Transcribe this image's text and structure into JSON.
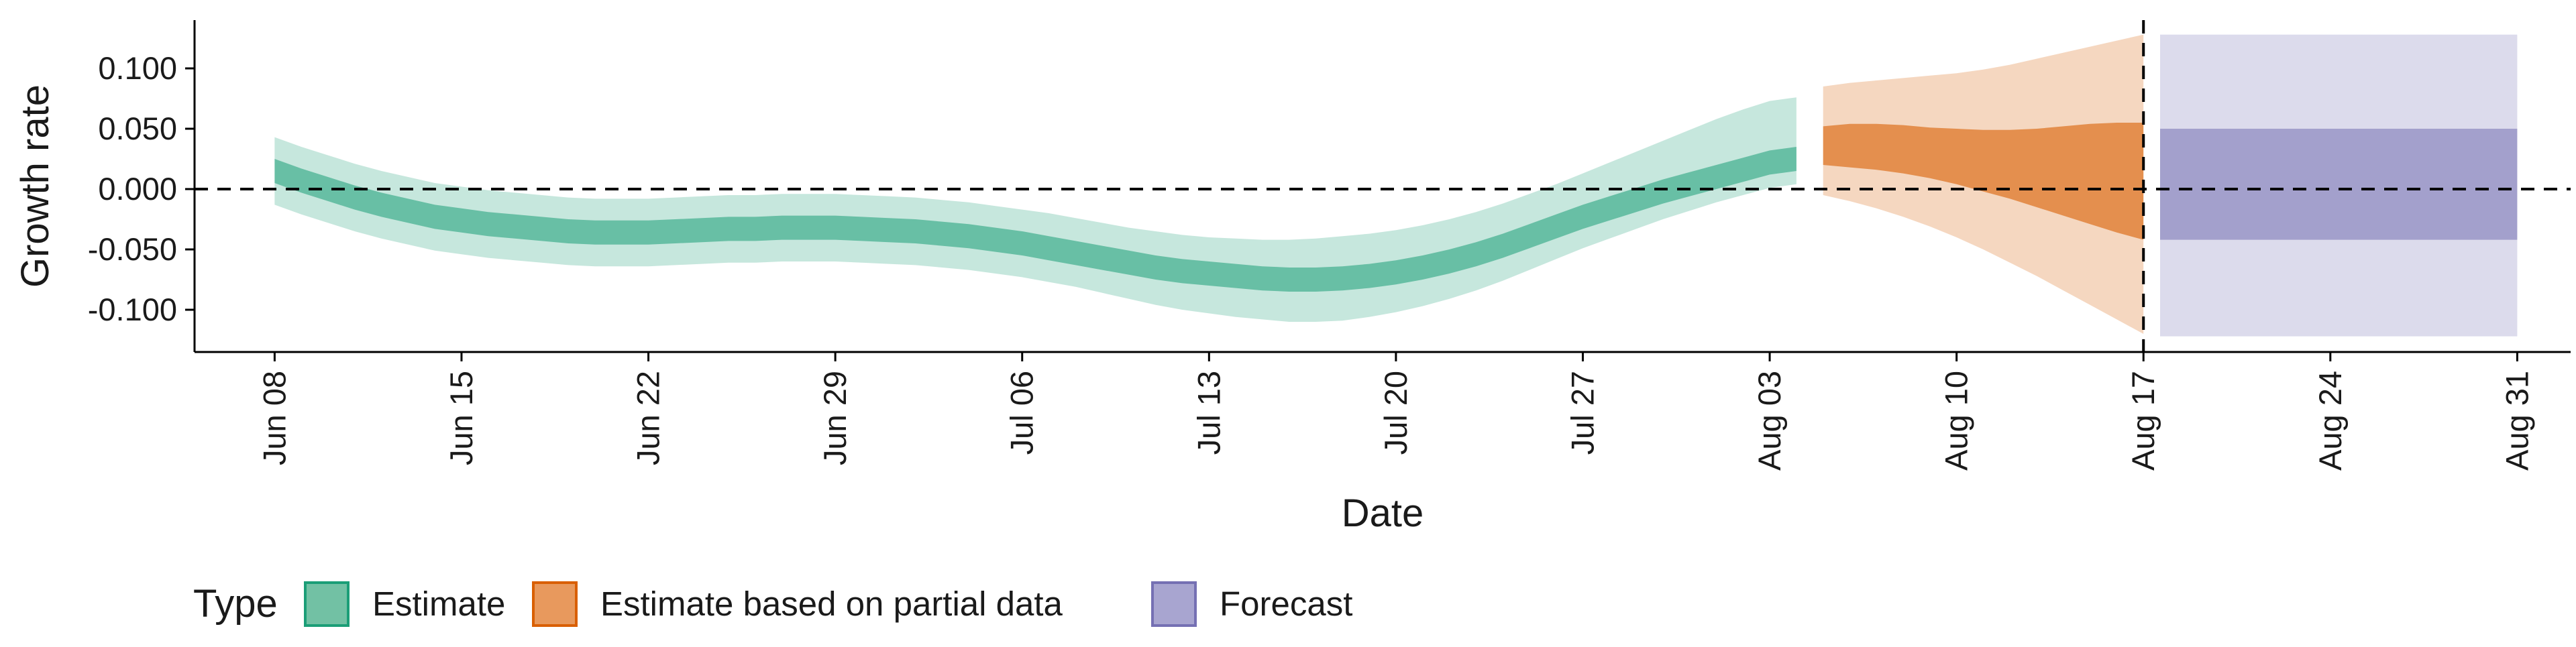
{
  "chart_data": {
    "type": "area",
    "xlabel": "Date",
    "ylabel": "Growth rate",
    "x_range": [
      "2020-06-05",
      "2020-09-02"
    ],
    "ylim": [
      -0.135,
      0.14
    ],
    "y_ticks": [
      -0.1,
      -0.05,
      0.0,
      0.05,
      0.1
    ],
    "y_tick_labels": [
      "-0.100",
      "-0.050",
      "0.000",
      "0.050",
      "0.100"
    ],
    "x_ticks": [
      "2020-06-08",
      "2020-06-15",
      "2020-06-22",
      "2020-06-29",
      "2020-07-06",
      "2020-07-13",
      "2020-07-20",
      "2020-07-27",
      "2020-08-03",
      "2020-08-10",
      "2020-08-17",
      "2020-08-24",
      "2020-08-31"
    ],
    "x_tick_labels": [
      "Jun 08",
      "Jun 15",
      "Jun 22",
      "Jun 29",
      "Jul 06",
      "Jul 13",
      "Jul 20",
      "Jul 27",
      "Aug 03",
      "Aug 10",
      "Aug 17",
      "Aug 24",
      "Aug 31"
    ],
    "reference_lines": {
      "horizontal_y": 0.0,
      "vertical_date": "2020-08-17"
    },
    "grid": false,
    "legend": {
      "title": "Type",
      "position": "bottom-left",
      "entries": [
        {
          "label": "Estimate",
          "fill": "#72c1a4",
          "stroke": "#1b9e77"
        },
        {
          "label": "Estimate based on partial data",
          "fill": "#e8995d",
          "stroke": "#d95f02"
        },
        {
          "label": "Forecast",
          "fill": "#a8a5d0",
          "stroke": "#7570b3"
        }
      ]
    },
    "series": [
      {
        "type": "Estimate",
        "color": "#1b9e77",
        "inner_opacity": 0.55,
        "outer_opacity": 0.25,
        "dates": [
          "2020-06-08",
          "2020-06-09",
          "2020-06-10",
          "2020-06-11",
          "2020-06-12",
          "2020-06-13",
          "2020-06-14",
          "2020-06-15",
          "2020-06-16",
          "2020-06-17",
          "2020-06-18",
          "2020-06-19",
          "2020-06-20",
          "2020-06-21",
          "2020-06-22",
          "2020-06-23",
          "2020-06-24",
          "2020-06-25",
          "2020-06-26",
          "2020-06-27",
          "2020-06-28",
          "2020-06-29",
          "2020-06-30",
          "2020-07-01",
          "2020-07-02",
          "2020-07-03",
          "2020-07-04",
          "2020-07-05",
          "2020-07-06",
          "2020-07-07",
          "2020-07-08",
          "2020-07-09",
          "2020-07-10",
          "2020-07-11",
          "2020-07-12",
          "2020-07-13",
          "2020-07-14",
          "2020-07-15",
          "2020-07-16",
          "2020-07-17",
          "2020-07-18",
          "2020-07-19",
          "2020-07-20",
          "2020-07-21",
          "2020-07-22",
          "2020-07-23",
          "2020-07-24",
          "2020-07-25",
          "2020-07-26",
          "2020-07-27",
          "2020-07-28",
          "2020-07-29",
          "2020-07-30",
          "2020-07-31",
          "2020-08-01",
          "2020-08-02",
          "2020-08-03",
          "2020-08-04"
        ],
        "inner_lower": [
          0.005,
          -0.003,
          -0.01,
          -0.017,
          -0.023,
          -0.028,
          -0.033,
          -0.036,
          -0.039,
          -0.041,
          -0.043,
          -0.045,
          -0.046,
          -0.046,
          -0.046,
          -0.045,
          -0.044,
          -0.043,
          -0.043,
          -0.042,
          -0.042,
          -0.042,
          -0.043,
          -0.044,
          -0.045,
          -0.047,
          -0.049,
          -0.052,
          -0.055,
          -0.059,
          -0.063,
          -0.067,
          -0.071,
          -0.075,
          -0.078,
          -0.08,
          -0.082,
          -0.084,
          -0.085,
          -0.085,
          -0.084,
          -0.082,
          -0.079,
          -0.075,
          -0.07,
          -0.064,
          -0.057,
          -0.049,
          -0.041,
          -0.033,
          -0.026,
          -0.019,
          -0.012,
          -0.006,
          0.0,
          0.006,
          0.012,
          0.015
        ],
        "inner_upper": [
          0.025,
          0.017,
          0.01,
          0.003,
          -0.003,
          -0.008,
          -0.013,
          -0.016,
          -0.019,
          -0.021,
          -0.023,
          -0.025,
          -0.026,
          -0.026,
          -0.026,
          -0.025,
          -0.024,
          -0.023,
          -0.023,
          -0.022,
          -0.022,
          -0.022,
          -0.023,
          -0.024,
          -0.025,
          -0.027,
          -0.029,
          -0.032,
          -0.035,
          -0.039,
          -0.043,
          -0.047,
          -0.051,
          -0.055,
          -0.058,
          -0.06,
          -0.062,
          -0.064,
          -0.065,
          -0.065,
          -0.064,
          -0.062,
          -0.059,
          -0.055,
          -0.05,
          -0.044,
          -0.037,
          -0.029,
          -0.021,
          -0.013,
          -0.006,
          0.001,
          0.008,
          0.014,
          0.02,
          0.026,
          0.032,
          0.035
        ],
        "outer_lower": [
          -0.013,
          -0.021,
          -0.028,
          -0.035,
          -0.041,
          -0.046,
          -0.051,
          -0.054,
          -0.057,
          -0.059,
          -0.061,
          -0.063,
          -0.064,
          -0.064,
          -0.064,
          -0.063,
          -0.062,
          -0.061,
          -0.061,
          -0.06,
          -0.06,
          -0.06,
          -0.061,
          -0.062,
          -0.063,
          -0.065,
          -0.067,
          -0.07,
          -0.073,
          -0.077,
          -0.081,
          -0.086,
          -0.091,
          -0.096,
          -0.1,
          -0.103,
          -0.106,
          -0.108,
          -0.11,
          -0.11,
          -0.109,
          -0.106,
          -0.102,
          -0.097,
          -0.091,
          -0.084,
          -0.076,
          -0.067,
          -0.058,
          -0.049,
          -0.041,
          -0.033,
          -0.025,
          -0.018,
          -0.011,
          -0.005,
          0.001,
          0.004
        ],
        "outer_upper": [
          0.043,
          0.035,
          0.028,
          0.021,
          0.015,
          0.01,
          0.005,
          0.002,
          -0.001,
          -0.003,
          -0.005,
          -0.007,
          -0.008,
          -0.008,
          -0.008,
          -0.007,
          -0.006,
          -0.005,
          -0.005,
          -0.004,
          -0.004,
          -0.004,
          -0.005,
          -0.006,
          -0.007,
          -0.009,
          -0.011,
          -0.014,
          -0.017,
          -0.02,
          -0.024,
          -0.028,
          -0.032,
          -0.035,
          -0.038,
          -0.04,
          -0.041,
          -0.042,
          -0.042,
          -0.041,
          -0.039,
          -0.037,
          -0.034,
          -0.03,
          -0.025,
          -0.019,
          -0.012,
          -0.004,
          0.004,
          0.013,
          0.022,
          0.031,
          0.04,
          0.049,
          0.058,
          0.066,
          0.073,
          0.076
        ]
      },
      {
        "type": "Estimate based on partial data",
        "color": "#d95f02",
        "inner_opacity": 0.6,
        "outer_opacity": 0.25,
        "dates": [
          "2020-08-05",
          "2020-08-06",
          "2020-08-07",
          "2020-08-08",
          "2020-08-09",
          "2020-08-10",
          "2020-08-11",
          "2020-08-12",
          "2020-08-13",
          "2020-08-14",
          "2020-08-15",
          "2020-08-16",
          "2020-08-17"
        ],
        "inner_lower": [
          0.02,
          0.018,
          0.016,
          0.013,
          0.009,
          0.004,
          -0.002,
          -0.008,
          -0.015,
          -0.022,
          -0.029,
          -0.036,
          -0.042
        ],
        "inner_upper": [
          0.052,
          0.054,
          0.054,
          0.053,
          0.051,
          0.05,
          0.049,
          0.049,
          0.05,
          0.052,
          0.054,
          0.055,
          0.055
        ],
        "outer_lower": [
          -0.005,
          -0.01,
          -0.016,
          -0.023,
          -0.031,
          -0.04,
          -0.05,
          -0.061,
          -0.072,
          -0.084,
          -0.096,
          -0.108,
          -0.12
        ],
        "outer_upper": [
          0.085,
          0.088,
          0.09,
          0.092,
          0.094,
          0.096,
          0.099,
          0.103,
          0.108,
          0.113,
          0.118,
          0.123,
          0.128
        ]
      },
      {
        "type": "Forecast",
        "color": "#7570b3",
        "inner_opacity": 0.55,
        "outer_opacity": 0.25,
        "dates": [
          "2020-08-18",
          "2020-08-31"
        ],
        "inner_lower": [
          -0.042,
          -0.042
        ],
        "inner_upper": [
          0.05,
          0.05
        ],
        "outer_lower": [
          -0.122,
          -0.122
        ],
        "outer_upper": [
          0.128,
          0.128
        ]
      }
    ]
  }
}
